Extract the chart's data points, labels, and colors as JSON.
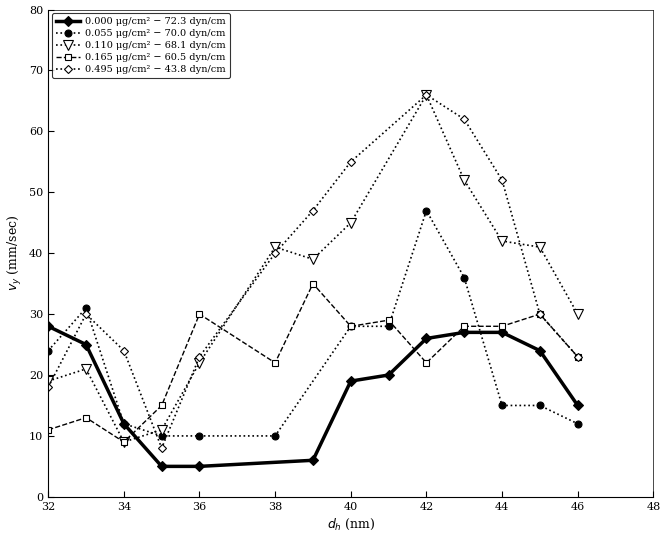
{
  "xlabel": "$d_h$ (nm)",
  "ylabel": "$v_y$ (mm/sec)",
  "xlim": [
    32,
    48
  ],
  "ylim": [
    0,
    80
  ],
  "xticks": [
    32,
    34,
    36,
    38,
    40,
    42,
    44,
    46,
    48
  ],
  "yticks": [
    0,
    10,
    20,
    30,
    40,
    50,
    60,
    70,
    80
  ],
  "series": [
    {
      "label": "0.000 μg/cm² − 72.3 dyn/cm",
      "x": [
        32,
        33,
        34,
        35,
        36,
        39,
        40,
        41,
        42,
        43,
        44,
        45,
        46
      ],
      "y": [
        28,
        25,
        12,
        5,
        5,
        6,
        19,
        20,
        26,
        27,
        27,
        24,
        15
      ],
      "color": "black",
      "linestyle": "-",
      "marker": "D",
      "markersize": 5,
      "markerfacecolor": "black",
      "linewidth": 2.5
    },
    {
      "label": "0.055 μg/cm² − 70.0 dyn/cm",
      "x": [
        32,
        33,
        34,
        35,
        36,
        38,
        40,
        41,
        42,
        43,
        44,
        45,
        46
      ],
      "y": [
        24,
        31,
        12,
        10,
        10,
        10,
        28,
        28,
        47,
        36,
        15,
        15,
        12
      ],
      "color": "black",
      "linestyle": ":",
      "marker": "o",
      "markersize": 5,
      "markerfacecolor": "black",
      "linewidth": 1.2
    },
    {
      "label": "0.110 μg/cm² − 68.1 dyn/cm",
      "x": [
        32,
        33,
        34,
        35,
        36,
        38,
        39,
        40,
        42,
        43,
        44,
        45,
        46
      ],
      "y": [
        19,
        21,
        9,
        11,
        22,
        41,
        39,
        45,
        66,
        52,
        42,
        41,
        30
      ],
      "color": "black",
      "linestyle": ":",
      "marker": "v",
      "markersize": 7,
      "markerfacecolor": "white",
      "linewidth": 1.2
    },
    {
      "label": "0.165 μg/cm² − 60.5 dyn/cm",
      "x": [
        32,
        33,
        34,
        35,
        36,
        38,
        39,
        40,
        41,
        42,
        43,
        44,
        45,
        46
      ],
      "y": [
        11,
        13,
        9,
        15,
        30,
        22,
        35,
        28,
        29,
        22,
        28,
        28,
        30,
        23
      ],
      "color": "black",
      "linestyle": "--",
      "marker": "s",
      "markersize": 4,
      "markerfacecolor": "white",
      "linewidth": 1.0
    },
    {
      "label": "0.495 μg/cm² − 43.8 dyn/cm",
      "x": [
        32,
        33,
        34,
        35,
        36,
        38,
        39,
        40,
        42,
        43,
        44,
        45,
        46
      ],
      "y": [
        18,
        30,
        24,
        8,
        23,
        40,
        47,
        55,
        66,
        62,
        52,
        30,
        23
      ],
      "color": "black",
      "linestyle": ":",
      "marker": "D",
      "markersize": 4,
      "markerfacecolor": "white",
      "linewidth": 1.2
    }
  ]
}
